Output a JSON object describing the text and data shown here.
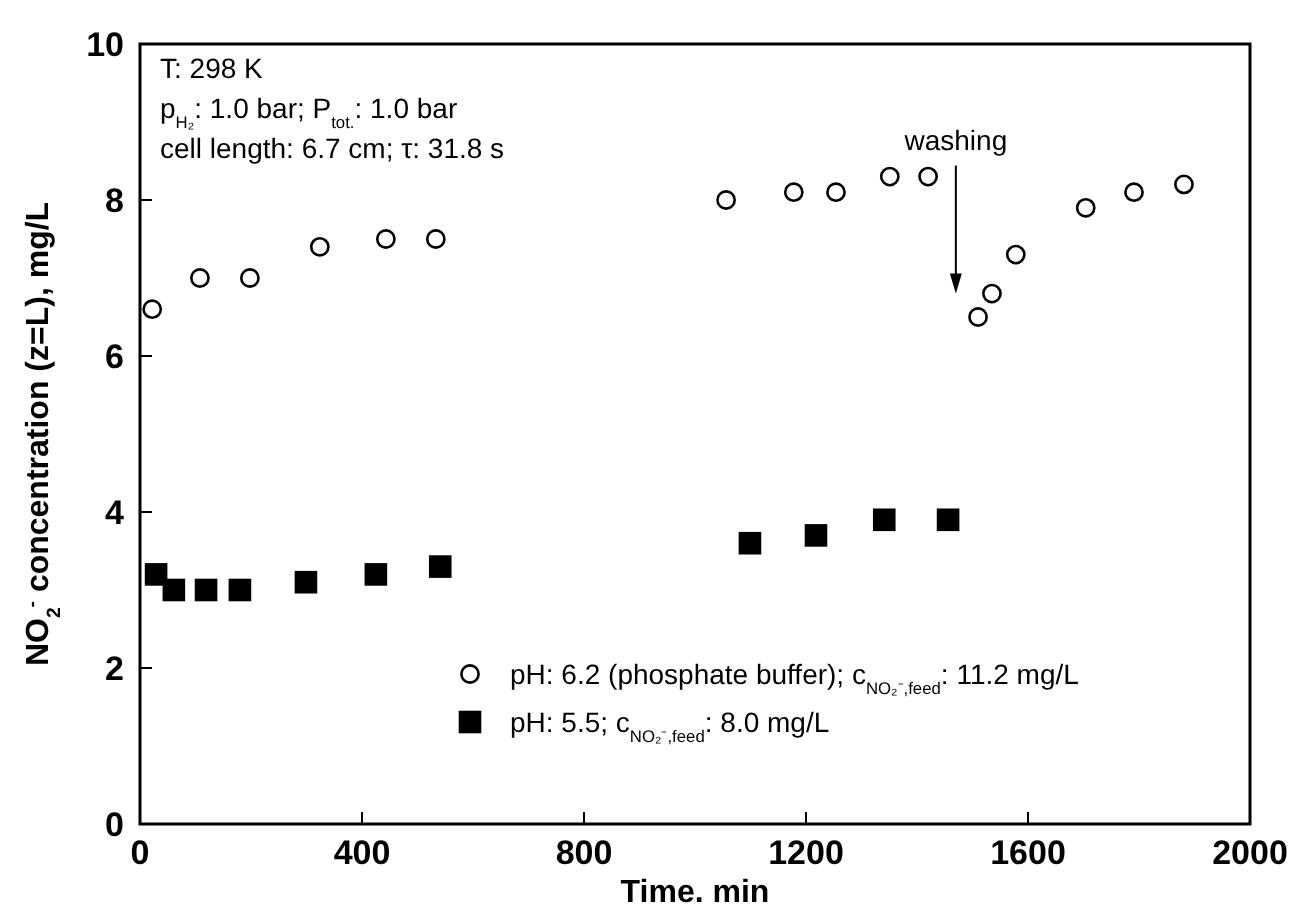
{
  "chart_data": {
    "type": "scatter",
    "xlabel": "Time. min",
    "ylabel": "NO$_{2}$$^{-}$ concentration (z=L), mg/L",
    "xlim": [
      0,
      2000
    ],
    "xticks": [
      0,
      400,
      800,
      1200,
      1600,
      2000
    ],
    "ylim": [
      0,
      10
    ],
    "yticks": [
      0,
      2,
      4,
      6,
      8,
      10
    ],
    "grid": false,
    "legend": "bottom right",
    "series": [
      {
        "name": "pH: 6.2 (phosphate buffer); c$_{NO₂⁻,feed}$: 11.2 mg/L",
        "color": "#000000",
        "marker": "circle",
        "x": [
          22,
          108,
          198,
          324,
          443,
          533,
          1056,
          1178,
          1254,
          1351,
          1420,
          1510,
          1535,
          1578,
          1704,
          1791,
          1881
        ],
        "values": [
          6.6,
          7.0,
          7.0,
          7.4,
          7.5,
          7.5,
          8.0,
          8.1,
          8.1,
          8.3,
          8.3,
          6.5,
          6.8,
          7.3,
          7.9,
          8.1,
          8.2
        ]
      },
      {
        "name": "pH: 5.5; c$_{NO₂⁻,feed}$: 8.0 mg/L",
        "color": "#000000",
        "marker": "square",
        "x": [
          29,
          61,
          119,
          180,
          299,
          425,
          541,
          1099,
          1218,
          1341,
          1456
        ],
        "values": [
          3.2,
          3.0,
          3.0,
          3.0,
          3.1,
          3.2,
          3.3,
          3.6,
          3.7,
          3.9,
          3.9
        ]
      }
    ],
    "annotations": [
      "T: 298 K",
      "p$_{H₂}$: 1.0 bar; P$_{tot.}$: 1.0 bar",
      "cell length: 6.7 cm; τ: 31.8 s",
      "washing"
    ]
  }
}
